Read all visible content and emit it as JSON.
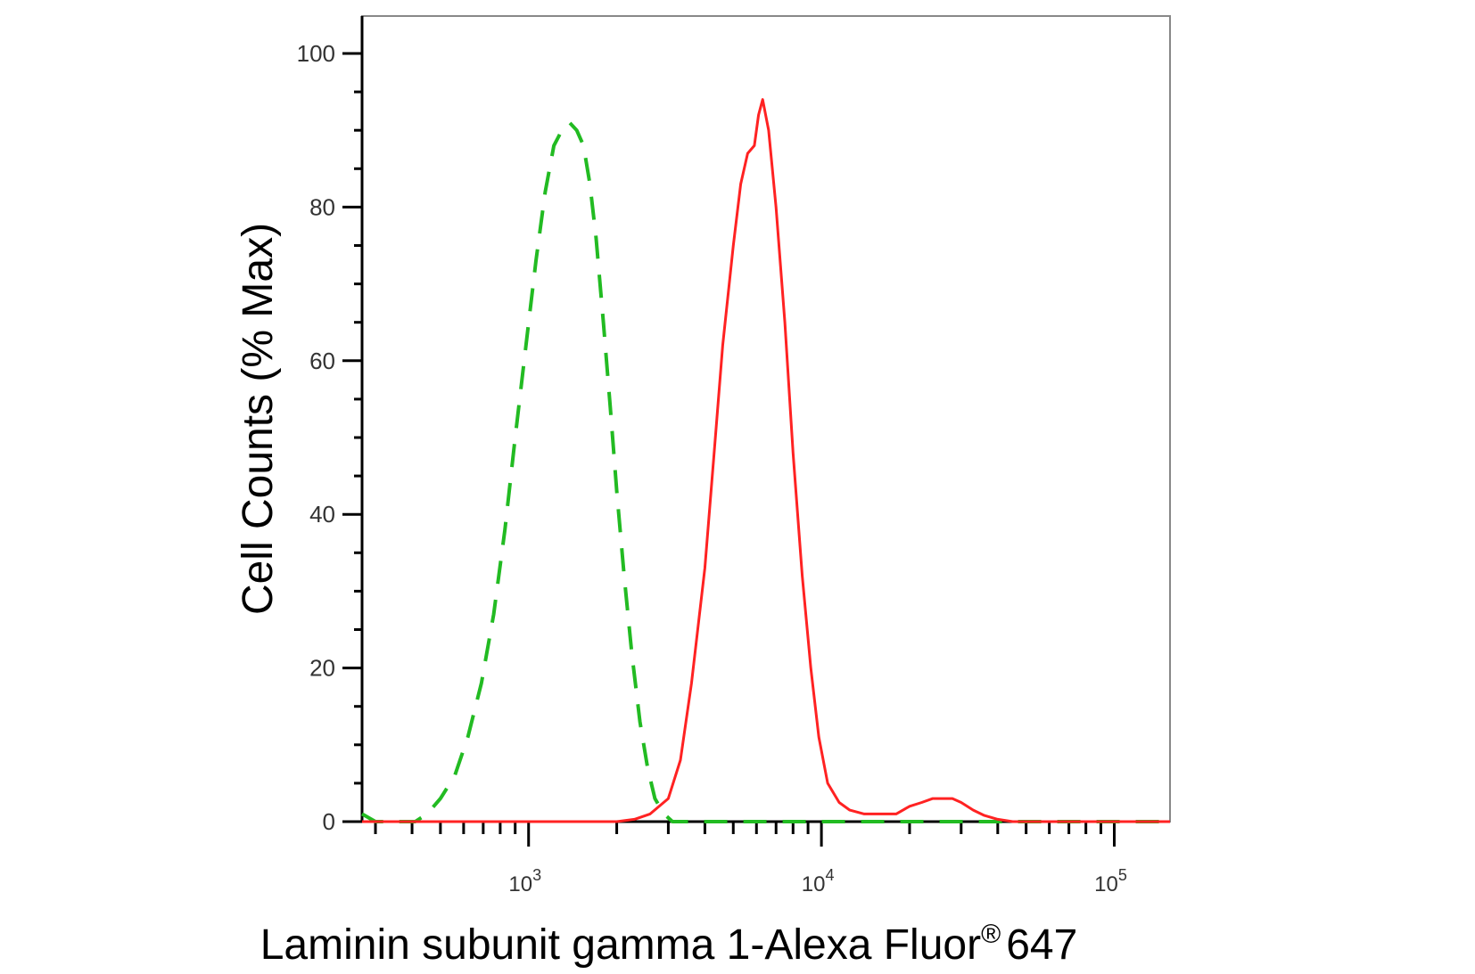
{
  "chart_data": {
    "type": "line",
    "title": "",
    "xlabel": "Laminin subunit gamma 1-Alexa Fluor",
    "xlabel_sup": "®",
    "xlabel_suffix": "647",
    "ylabel": "Cell Counts (% Max)",
    "x_scale": "log",
    "xlim": [
      270,
      155000
    ],
    "ylim": [
      0,
      100
    ],
    "y_ticks": [
      0,
      20,
      40,
      60,
      80,
      100
    ],
    "y_tick_labels": [
      "0",
      "20",
      "40",
      "60",
      "80",
      "100"
    ],
    "x_ticks": [
      {
        "value": 1000,
        "base": "10",
        "exp": "3"
      },
      {
        "value": 10000,
        "base": "10",
        "exp": "4"
      },
      {
        "value": 100000,
        "base": "10",
        "exp": "5"
      }
    ],
    "grid": false,
    "legend": "none",
    "series": [
      {
        "style": "dashed",
        "color": "#22bb22",
        "x": [
          270,
          300,
          330,
          370,
          410,
          450,
          500,
          560,
          620,
          690,
          760,
          830,
          900,
          980,
          1060,
          1140,
          1220,
          1300,
          1380,
          1460,
          1540,
          1620,
          1700,
          1800,
          1900,
          2000,
          2120,
          2250,
          2400,
          2550,
          2700,
          2900,
          3100,
          3400,
          3800,
          5000,
          7000,
          10000,
          20000,
          50000,
          155000
        ],
        "y": [
          1,
          0,
          0,
          0,
          0,
          1,
          3,
          6,
          11,
          18,
          27,
          38,
          50,
          62,
          73,
          82,
          88,
          90,
          91,
          90,
          88,
          83,
          76,
          65,
          54,
          43,
          32,
          22,
          13,
          7,
          3,
          1,
          0,
          0,
          0,
          0,
          0,
          0,
          0,
          0,
          0
        ]
      },
      {
        "style": "solid",
        "color": "#ff2222",
        "x": [
          270,
          1000,
          2000,
          2300,
          2600,
          3000,
          3300,
          3600,
          4000,
          4300,
          4600,
          5000,
          5300,
          5600,
          5900,
          6100,
          6300,
          6600,
          7000,
          7500,
          8000,
          8600,
          9200,
          9800,
          10500,
          11500,
          12500,
          14000,
          16000,
          18000,
          20000,
          22000,
          24000,
          26000,
          28000,
          30000,
          33000,
          36000,
          40000,
          45000,
          50000,
          60000,
          80000,
          155000
        ],
        "y": [
          0,
          0,
          0,
          0.3,
          1,
          3,
          8,
          18,
          33,
          48,
          62,
          75,
          83,
          87,
          88,
          92,
          94,
          90,
          80,
          65,
          48,
          32,
          20,
          11,
          5,
          2.5,
          1.5,
          1,
          1,
          1,
          2,
          2.5,
          3,
          3,
          3,
          2.5,
          1.5,
          0.8,
          0.3,
          0,
          0,
          0,
          0,
          0
        ]
      }
    ]
  }
}
